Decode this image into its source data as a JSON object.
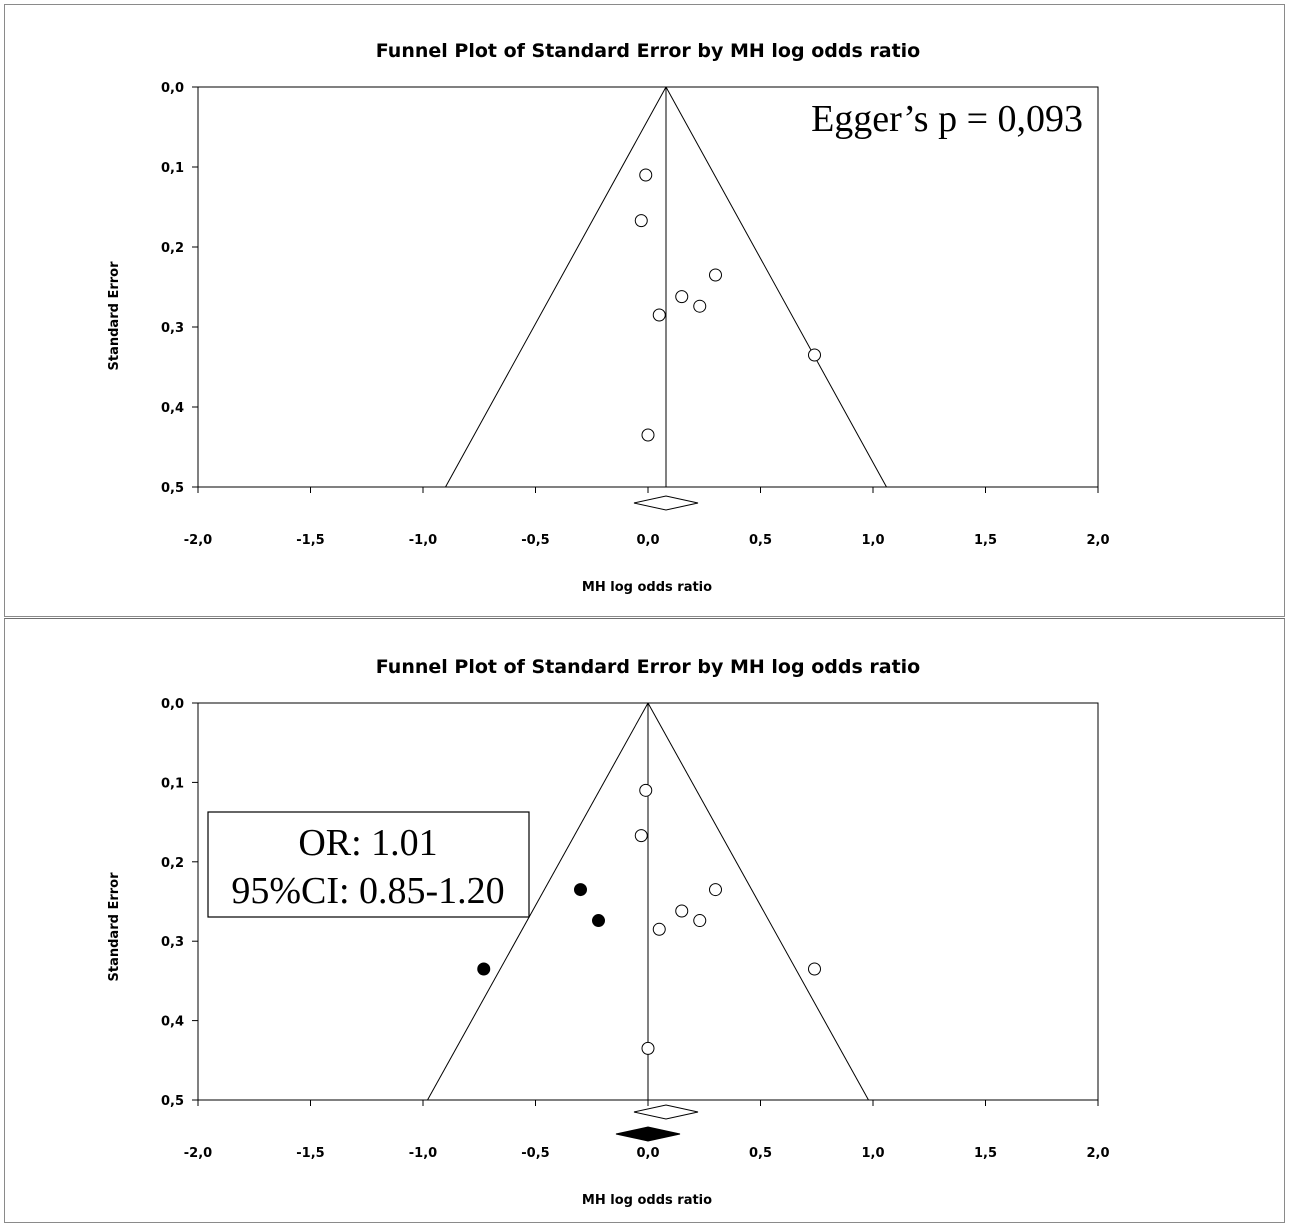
{
  "chart_data": [
    {
      "type": "scatter",
      "title": "Funnel Plot of Standard Error by MH log odds ratio",
      "xlabel": "MH log odds ratio",
      "ylabel": "Standard Error",
      "xlim": [
        -2.0,
        2.0
      ],
      "ylim": [
        0.0,
        0.5
      ],
      "y_inverted": true,
      "x_ticks": [
        "-2,0",
        "-1,5",
        "-1,0",
        "-0,5",
        "0,0",
        "0,5",
        "1,0",
        "1,5",
        "2,0"
      ],
      "y_ticks": [
        "0,0",
        "0,1",
        "0,2",
        "0,3",
        "0,4",
        "0,5"
      ],
      "grid": false,
      "funnel_center": 0.08,
      "annotations": [
        "Egger’s p = 0,093"
      ],
      "summary_diamonds": [
        {
          "center": 0.08,
          "style": "open"
        }
      ],
      "series": [
        {
          "marker": "open-circle",
          "points": [
            {
              "x": -0.01,
              "y": 0.11
            },
            {
              "x": -0.03,
              "y": 0.167
            },
            {
              "x": 0.3,
              "y": 0.235
            },
            {
              "x": 0.15,
              "y": 0.262
            },
            {
              "x": 0.23,
              "y": 0.274
            },
            {
              "x": 0.05,
              "y": 0.285
            },
            {
              "x": 0.74,
              "y": 0.335
            },
            {
              "x": 0.0,
              "y": 0.435
            }
          ]
        }
      ]
    },
    {
      "type": "scatter",
      "title": "Funnel Plot of Standard Error by MH log odds ratio",
      "xlabel": "MH log odds ratio",
      "ylabel": "Standard Error",
      "xlim": [
        -2.0,
        2.0
      ],
      "ylim": [
        0.0,
        0.5
      ],
      "y_inverted": true,
      "x_ticks": [
        "-2,0",
        "-1,5",
        "-1,0",
        "-0,5",
        "0,0",
        "0,5",
        "1,0",
        "1,5",
        "2,0"
      ],
      "y_ticks": [
        "0,0",
        "0,1",
        "0,2",
        "0,3",
        "0,4",
        "0,5"
      ],
      "grid": false,
      "funnel_center": 0.0,
      "annotations": [
        "OR: 1.01",
        "95%CI: 0.85-1.20"
      ],
      "summary_diamonds": [
        {
          "center": 0.08,
          "style": "open"
        },
        {
          "center": 0.0,
          "style": "filled"
        }
      ],
      "series": [
        {
          "marker": "open-circle",
          "points": [
            {
              "x": -0.01,
              "y": 0.11
            },
            {
              "x": -0.03,
              "y": 0.167
            },
            {
              "x": 0.3,
              "y": 0.235
            },
            {
              "x": 0.15,
              "y": 0.262
            },
            {
              "x": 0.23,
              "y": 0.274
            },
            {
              "x": 0.05,
              "y": 0.285
            },
            {
              "x": 0.74,
              "y": 0.335
            },
            {
              "x": 0.0,
              "y": 0.435
            }
          ]
        },
        {
          "marker": "filled-circle",
          "points": [
            {
              "x": -0.3,
              "y": 0.235
            },
            {
              "x": -0.22,
              "y": 0.274
            },
            {
              "x": -0.73,
              "y": 0.335
            }
          ]
        }
      ]
    }
  ]
}
